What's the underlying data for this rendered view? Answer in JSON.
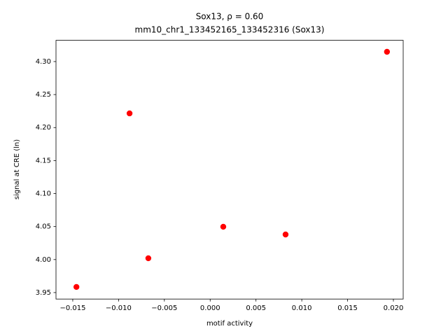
{
  "chart_data": {
    "type": "scatter",
    "title": "Sox13, ρ = 0.60",
    "subtitle": "mm10_chr1_133452165_133452316 (Sox13)",
    "x_label": "motif activity",
    "y_label": "signal at CRE (ln)",
    "color": "#ff0000",
    "x": [
      -0.0146,
      -0.0088,
      -0.00675,
      0.00143,
      0.00823,
      0.0193
    ],
    "values": [
      3.9585,
      4.2215,
      4.002,
      4.0497,
      4.038,
      4.3148
    ],
    "xlim": [
      -0.01683,
      0.02107
    ],
    "ylim": [
      3.9402,
      4.3322
    ],
    "xticks": [
      {
        "value": -0.015,
        "label": "−0.015"
      },
      {
        "value": -0.01,
        "label": "−0.010"
      },
      {
        "value": -0.005,
        "label": "−0.005"
      },
      {
        "value": 0,
        "label": "0.000"
      },
      {
        "value": 0.005,
        "label": "0.005"
      },
      {
        "value": 0.01,
        "label": "0.010"
      },
      {
        "value": 0.015,
        "label": "0.015"
      },
      {
        "value": 0.02,
        "label": "0.020"
      }
    ],
    "yticks": [
      3.95,
      {
        "value": 4.0,
        "label": "4.00"
      },
      4.05,
      {
        "value": 4.1,
        "label": "4.10"
      },
      4.15,
      {
        "value": 4.2,
        "label": "4.20"
      },
      4.25,
      {
        "value": 4.3,
        "label": "4.30"
      }
    ]
  }
}
